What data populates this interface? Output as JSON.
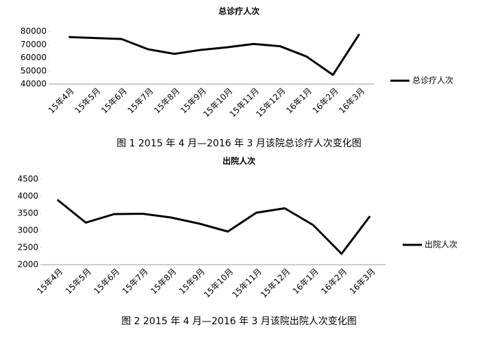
{
  "chart_data": [
    {
      "type": "line",
      "title": "总诊疗人次",
      "caption": "图 1 2015 年 4 月—2016 年 3 月该院总诊疗人次变化图",
      "categories": [
        "15年4月",
        "15年5月",
        "15年6月",
        "15年7月",
        "15年8月",
        "15年9月",
        "15年10月",
        "15年11月",
        "15年12月",
        "16年1月",
        "16年2月",
        "16年3月"
      ],
      "series": [
        {
          "name": "总诊疗人次",
          "color": "#000000",
          "values": [
            75800,
            75000,
            74300,
            66500,
            63000,
            66000,
            68000,
            70500,
            68800,
            61000,
            47000,
            78000
          ]
        }
      ],
      "ylim": [
        40000,
        80000
      ],
      "yticks": [
        40000,
        50000,
        60000,
        70000,
        80000
      ],
      "grid": false,
      "legend": "right"
    },
    {
      "type": "line",
      "title": "出院人次",
      "caption": "图 2 2015 年 4 月—2016 年 3 月该院出院人次变化图",
      "categories": [
        "15年4月",
        "15年5月",
        "15年6月",
        "15年7月",
        "15年8月",
        "15年9月",
        "15年10月",
        "15年11月",
        "15年12月",
        "16年1月",
        "16年2月",
        "16年3月"
      ],
      "series": [
        {
          "name": "出院人次",
          "color": "#000000",
          "values": [
            3900,
            3230,
            3480,
            3490,
            3380,
            3200,
            2970,
            3520,
            3650,
            3160,
            2320,
            3420
          ]
        }
      ],
      "ylim": [
        2000,
        4500
      ],
      "yticks": [
        2000,
        2500,
        3000,
        3500,
        4000,
        4500
      ],
      "grid": false,
      "legend": "right"
    }
  ]
}
